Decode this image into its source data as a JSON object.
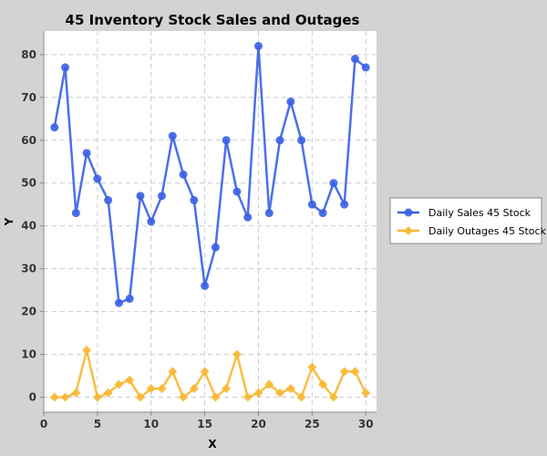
{
  "chart_data": {
    "type": "line",
    "title": "45 Inventory Stock Sales and Outages",
    "xlabel": "X",
    "ylabel": "Y",
    "xlim": [
      0,
      31
    ],
    "ylim": [
      -3.5,
      85.5
    ],
    "x_ticks": [
      0,
      5,
      10,
      15,
      20,
      25,
      30
    ],
    "y_ticks": [
      0,
      10,
      20,
      30,
      40,
      50,
      60,
      70,
      80
    ],
    "grid": true,
    "legend_position": "right",
    "x": [
      1,
      2,
      3,
      4,
      5,
      6,
      7,
      8,
      9,
      10,
      11,
      12,
      13,
      14,
      15,
      16,
      17,
      18,
      19,
      20,
      21,
      22,
      23,
      24,
      25,
      26,
      27,
      28,
      29,
      30
    ],
    "series": [
      {
        "name": "Daily Sales 45 Stock",
        "color": "#3a5fe5",
        "marker": "circle",
        "values": [
          63,
          77,
          43,
          57,
          51,
          46,
          22,
          23,
          47,
          41,
          47,
          61,
          52,
          46,
          26,
          35,
          60,
          48,
          42,
          82,
          43,
          60,
          69,
          60,
          45,
          43,
          50,
          45,
          79,
          77
        ]
      },
      {
        "name": "Daily Outages 45 Stock",
        "color": "#f7b731",
        "marker": "diamond",
        "values": [
          0,
          0,
          1,
          11,
          0,
          1,
          3,
          4,
          0,
          2,
          2,
          6,
          0,
          2,
          6,
          0,
          2,
          10,
          0,
          1,
          3,
          1,
          2,
          0,
          7,
          3,
          0,
          6,
          6,
          1
        ]
      }
    ]
  }
}
